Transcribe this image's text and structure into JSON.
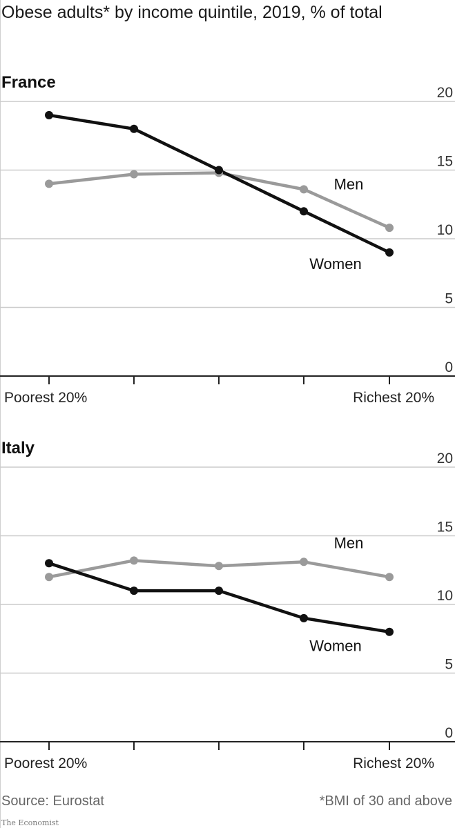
{
  "title": "Obese adults* by income quintile, 2019, % of total",
  "source": "Source: Eurostat",
  "footnote": "*BMI of 30 and above",
  "brand": "The Economist",
  "colors": {
    "men": "#9a9a9a",
    "women": "#111111",
    "grid": "#cccccc"
  },
  "chart_data": [
    {
      "type": "line",
      "title": "France",
      "categories": [
        "Poorest 20%",
        "",
        "",
        "",
        "Richest 20%"
      ],
      "ylim": [
        0,
        20
      ],
      "yticks": [
        0,
        5,
        10,
        15,
        20
      ],
      "grid": true,
      "series": [
        {
          "name": "Men",
          "values": [
            14.0,
            14.7,
            14.8,
            13.6,
            10.8
          ]
        },
        {
          "name": "Women",
          "values": [
            19.0,
            18.0,
            15.0,
            12.0,
            9.0
          ]
        }
      ]
    },
    {
      "type": "line",
      "title": "Italy",
      "categories": [
        "Poorest 20%",
        "",
        "",
        "",
        "Richest 20%"
      ],
      "ylim": [
        0,
        20
      ],
      "yticks": [
        0,
        5,
        10,
        15,
        20
      ],
      "grid": true,
      "series": [
        {
          "name": "Men",
          "values": [
            12.0,
            13.2,
            12.8,
            13.1,
            12.0
          ]
        },
        {
          "name": "Women",
          "values": [
            13.0,
            11.0,
            11.0,
            9.0,
            8.0
          ]
        }
      ]
    }
  ]
}
